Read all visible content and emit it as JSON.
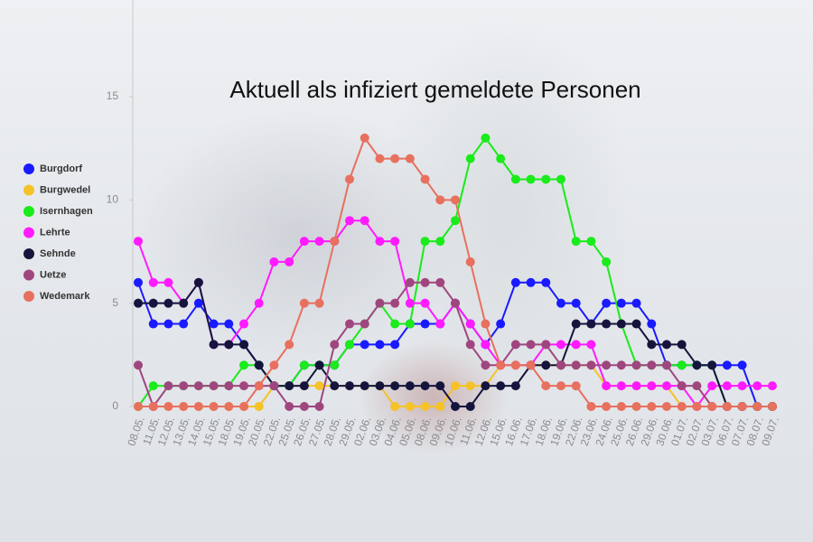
{
  "chart_data": {
    "type": "line",
    "title": "Aktuell als infiziert gemeldete Personen",
    "categories": [
      "08.05.",
      "11.05.",
      "12.05.",
      "13.05.",
      "14.05.",
      "15.05.",
      "18.05.",
      "19.05.",
      "20.05.",
      "22.05.",
      "25.05.",
      "26.05.",
      "27.05.",
      "28.05.",
      "29.05.",
      "02.06.",
      "03.06.",
      "04.06.",
      "05.06.",
      "08.06.",
      "09.06.",
      "10.06.",
      "11.06.",
      "12.06.",
      "15.06.",
      "16.06.",
      "17.06.",
      "18.06.",
      "19.06.",
      "22.06.",
      "23.06.",
      "24.06.",
      "25.06.",
      "26.06.",
      "29.06.",
      "30.06.",
      "01.07.",
      "02.07.",
      "03.07.",
      "06.07.",
      "07.07.",
      "08.07.",
      "09.07."
    ],
    "ylim": [
      0,
      15
    ],
    "yticks": [
      0,
      5,
      10,
      15
    ],
    "legend": "left",
    "series": [
      {
        "name": "Burgdorf",
        "color": "#1a1aff",
        "values": [
          6,
          4,
          4,
          4,
          5,
          4,
          4,
          3,
          2,
          1,
          1,
          2,
          2,
          2,
          3,
          3,
          3,
          3,
          4,
          4,
          4,
          5,
          4,
          3,
          4,
          6,
          6,
          6,
          5,
          5,
          4,
          5,
          5,
          5,
          4,
          2,
          2,
          2,
          2,
          2,
          2,
          0,
          0
        ]
      },
      {
        "name": "Burgwedel",
        "color": "#f5c227",
        "values": [
          0,
          0,
          0,
          0,
          0,
          0,
          0,
          0,
          0,
          1,
          1,
          1,
          1,
          1,
          1,
          1,
          1,
          0,
          0,
          0,
          0,
          1,
          1,
          1,
          2,
          2,
          2,
          2,
          2,
          2,
          2,
          1,
          1,
          1,
          1,
          1,
          0,
          0,
          0,
          0,
          0,
          0,
          0
        ]
      },
      {
        "name": "Isernhagen",
        "color": "#1aeb1a",
        "values": [
          0,
          1,
          1,
          1,
          1,
          1,
          1,
          2,
          2,
          1,
          1,
          2,
          2,
          2,
          3,
          4,
          5,
          4,
          4,
          8,
          8,
          9,
          12,
          13,
          12,
          11,
          11,
          11,
          11,
          8,
          8,
          7,
          4,
          2,
          2,
          2,
          2,
          2,
          2,
          0,
          0,
          0,
          0
        ]
      },
      {
        "name": "Lehrte",
        "color": "#ff1aff",
        "values": [
          8,
          6,
          6,
          5,
          6,
          3,
          3,
          4,
          5,
          7,
          7,
          8,
          8,
          8,
          9,
          9,
          8,
          8,
          5,
          5,
          4,
          5,
          4,
          3,
          2,
          2,
          2,
          3,
          3,
          3,
          3,
          1,
          1,
          1,
          1,
          1,
          1,
          0,
          1,
          1,
          1,
          1,
          1
        ]
      },
      {
        "name": "Sehnde",
        "color": "#14143c",
        "values": [
          5,
          5,
          5,
          5,
          6,
          3,
          3,
          3,
          2,
          1,
          1,
          1,
          2,
          1,
          1,
          1,
          1,
          1,
          1,
          1,
          1,
          0,
          0,
          1,
          1,
          1,
          2,
          2,
          2,
          4,
          4,
          4,
          4,
          4,
          3,
          3,
          3,
          2,
          2,
          0,
          0,
          0,
          0
        ]
      },
      {
        "name": "Uetze",
        "color": "#a0467f",
        "values": [
          2,
          0,
          1,
          1,
          1,
          1,
          1,
          1,
          1,
          1,
          0,
          0,
          0,
          3,
          4,
          4,
          5,
          5,
          6,
          6,
          6,
          5,
          3,
          2,
          2,
          3,
          3,
          3,
          2,
          2,
          2,
          2,
          2,
          2,
          2,
          2,
          1,
          1,
          0,
          0,
          0,
          0,
          0
        ]
      },
      {
        "name": "Wedemark",
        "color": "#e8705f",
        "values": [
          0,
          0,
          0,
          0,
          0,
          0,
          0,
          0,
          1,
          2,
          3,
          5,
          5,
          8,
          11,
          13,
          12,
          12,
          12,
          11,
          10,
          10,
          7,
          4,
          2,
          2,
          2,
          1,
          1,
          1,
          0,
          0,
          0,
          0,
          0,
          0,
          0,
          0,
          0,
          0,
          0,
          0,
          0
        ]
      }
    ]
  }
}
